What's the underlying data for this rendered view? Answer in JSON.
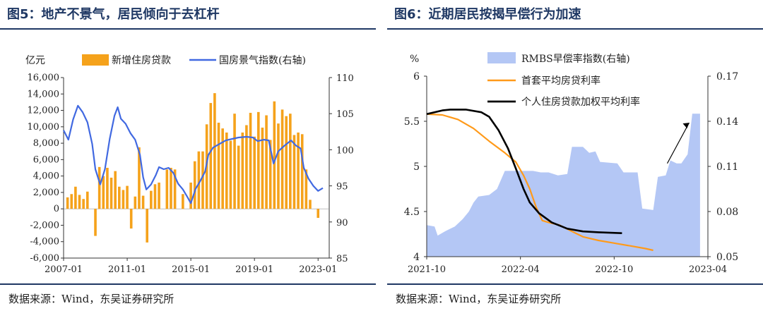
{
  "chart_data": [
    {
      "type": "bar+line",
      "title": "图5：地产不景气，居民倾向于去杠杆",
      "source": "数据来源：Wind，东吴证券研究所",
      "left_unit": "亿元",
      "legend": [
        "新增住房贷款",
        "国房景气指数(右轴)"
      ],
      "colors": {
        "bar": "#f5a21b",
        "line": "#4169e1"
      },
      "left_axis": {
        "min": -6000,
        "max": 16000,
        "step": 2000,
        "ticks": [
          "-6,000",
          "-4,000",
          "-2,000",
          "0",
          "2,000",
          "4,000",
          "6,000",
          "8,000",
          "10,000",
          "12,000",
          "14,000",
          "16,000"
        ]
      },
      "right_axis": {
        "min": 85,
        "max": 110,
        "step": 5,
        "ticks": [
          "85",
          "90",
          "95",
          "100",
          "105",
          "110"
        ]
      },
      "x_ticks": [
        "2007-01",
        "2011-01",
        "2015-01",
        "2019-01",
        "2023-01"
      ],
      "x_range": [
        2007.0,
        2023.7
      ],
      "bar_points": [
        [
          2007.25,
          1400
        ],
        [
          2007.5,
          1800
        ],
        [
          2007.75,
          2700
        ],
        [
          2008.0,
          1700
        ],
        [
          2008.25,
          1200
        ],
        [
          2008.5,
          2100
        ],
        [
          2009.0,
          -3300
        ],
        [
          2009.25,
          5100
        ],
        [
          2009.5,
          4000
        ],
        [
          2009.75,
          5000
        ],
        [
          2010.0,
          3800
        ],
        [
          2010.25,
          4600
        ],
        [
          2010.5,
          2700
        ],
        [
          2010.75,
          2300
        ],
        [
          2011.0,
          2800
        ],
        [
          2011.25,
          -2400
        ],
        [
          2011.5,
          1500
        ],
        [
          2011.75,
          7500
        ],
        [
          2012.0,
          1600
        ],
        [
          2012.25,
          -4100
        ],
        [
          2012.5,
          2200
        ],
        [
          2012.75,
          3000
        ],
        [
          2013.0,
          3200
        ],
        [
          2013.5,
          4800
        ],
        [
          2013.75,
          5000
        ],
        [
          2014.0,
          4800
        ],
        [
          2014.5,
          1800
        ],
        [
          2015.0,
          3200
        ],
        [
          2015.25,
          5800
        ],
        [
          2015.5,
          7000
        ],
        [
          2015.75,
          7000
        ],
        [
          2016.0,
          10300
        ],
        [
          2016.25,
          12900
        ],
        [
          2016.5,
          14100
        ],
        [
          2016.75,
          10500
        ],
        [
          2017.0,
          9800
        ],
        [
          2017.25,
          9300
        ],
        [
          2017.5,
          8300
        ],
        [
          2017.75,
          11600
        ],
        [
          2018.0,
          7700
        ],
        [
          2018.25,
          9300
        ],
        [
          2018.5,
          10200
        ],
        [
          2018.75,
          11700
        ],
        [
          2019.0,
          8800
        ],
        [
          2019.25,
          11800
        ],
        [
          2019.5,
          9900
        ],
        [
          2019.75,
          11400
        ],
        [
          2020.0,
          8400
        ],
        [
          2020.25,
          13100
        ],
        [
          2020.5,
          10400
        ],
        [
          2020.75,
          12100
        ],
        [
          2021.0,
          11300
        ],
        [
          2021.25,
          11600
        ],
        [
          2021.5,
          9000
        ],
        [
          2021.75,
          9300
        ],
        [
          2022.0,
          9100
        ],
        [
          2022.25,
          4800
        ],
        [
          2022.5,
          1100
        ],
        [
          2023.0,
          -1100
        ]
      ],
      "line_points": [
        [
          2007.0,
          102.7
        ],
        [
          2007.3,
          101.4
        ],
        [
          2007.6,
          104.2
        ],
        [
          2007.9,
          106.1
        ],
        [
          2008.2,
          105.2
        ],
        [
          2008.5,
          103.8
        ],
        [
          2008.8,
          100.8
        ],
        [
          2009.0,
          97.3
        ],
        [
          2009.3,
          95.2
        ],
        [
          2009.6,
          97.3
        ],
        [
          2009.9,
          101.5
        ],
        [
          2010.2,
          104.7
        ],
        [
          2010.4,
          105.9
        ],
        [
          2010.6,
          104.3
        ],
        [
          2010.9,
          103.6
        ],
        [
          2011.2,
          102.3
        ],
        [
          2011.5,
          101.4
        ],
        [
          2011.8,
          99.3
        ],
        [
          2012.0,
          96.2
        ],
        [
          2012.2,
          94.5
        ],
        [
          2012.5,
          95.2
        ],
        [
          2012.8,
          96.5
        ],
        [
          2013.0,
          97.6
        ],
        [
          2013.3,
          97.3
        ],
        [
          2013.6,
          97.5
        ],
        [
          2013.9,
          96.8
        ],
        [
          2014.2,
          95.3
        ],
        [
          2014.5,
          94.5
        ],
        [
          2014.8,
          93.4
        ],
        [
          2015.0,
          92.6
        ],
        [
          2015.3,
          94.6
        ],
        [
          2015.6,
          95.7
        ],
        [
          2015.9,
          97.0
        ],
        [
          2016.1,
          99.3
        ],
        [
          2016.4,
          100.3
        ],
        [
          2016.8,
          100.8
        ],
        [
          2017.2,
          101.3
        ],
        [
          2017.6,
          101.5
        ],
        [
          2018.0,
          101.7
        ],
        [
          2018.5,
          101.8
        ],
        [
          2018.9,
          101.7
        ],
        [
          2019.2,
          101.2
        ],
        [
          2019.6,
          101.4
        ],
        [
          2019.9,
          101.3
        ],
        [
          2020.2,
          98.1
        ],
        [
          2020.5,
          99.8
        ],
        [
          2020.9,
          100.6
        ],
        [
          2021.3,
          101.3
        ],
        [
          2021.6,
          100.6
        ],
        [
          2021.9,
          100.2
        ],
        [
          2022.1,
          97.5
        ],
        [
          2022.4,
          96.0
        ],
        [
          2022.7,
          95.0
        ],
        [
          2023.0,
          94.3
        ],
        [
          2023.3,
          94.7
        ]
      ]
    },
    {
      "type": "area+line",
      "title": "图6：近期居民按揭早偿行为加速",
      "source": "数据来源：Wind，东吴证券研究所",
      "left_unit": "%",
      "legend": [
        "RMBS早偿率指数(右轴)",
        "首套平均房贷利率",
        "个人住房贷款加权平均利率"
      ],
      "colors": {
        "area": "#b4c7f5",
        "line1": "#ff9a1a",
        "line2": "#000000"
      },
      "left_axis": {
        "min": 4,
        "max": 6,
        "ticks": [
          "4",
          "4.5",
          "5",
          "5.5",
          "6"
        ]
      },
      "right_axis": {
        "min": 0.05,
        "max": 0.17,
        "ticks": [
          "0.05",
          "0.08",
          "0.11",
          "0.14",
          "0.17"
        ]
      },
      "x_ticks": [
        "2021-10",
        "2022-04",
        "2022-10",
        "2023-04"
      ],
      "x_range": [
        0,
        18
      ],
      "area_points": [
        [
          0,
          0.071
        ],
        [
          0.5,
          0.07
        ],
        [
          0.7,
          0.064
        ],
        [
          1.2,
          0.067
        ],
        [
          1.8,
          0.07
        ],
        [
          2.3,
          0.075
        ],
        [
          2.7,
          0.08
        ],
        [
          3.0,
          0.086
        ],
        [
          3.3,
          0.09
        ],
        [
          4.0,
          0.091
        ],
        [
          4.5,
          0.095
        ],
        [
          5.0,
          0.107
        ],
        [
          6.0,
          0.107
        ],
        [
          6.8,
          0.107
        ],
        [
          7.3,
          0.106
        ],
        [
          7.8,
          0.106
        ],
        [
          8.4,
          0.104
        ],
        [
          9.0,
          0.105
        ],
        [
          9.3,
          0.123
        ],
        [
          10.0,
          0.123
        ],
        [
          10.4,
          0.119
        ],
        [
          10.8,
          0.12
        ],
        [
          11.1,
          0.113
        ],
        [
          12.2,
          0.112
        ],
        [
          12.6,
          0.106
        ],
        [
          13.5,
          0.106
        ],
        [
          13.8,
          0.082
        ],
        [
          14.5,
          0.081
        ],
        [
          14.8,
          0.103
        ],
        [
          15.3,
          0.104
        ],
        [
          15.6,
          0.114
        ],
        [
          16.0,
          0.112
        ],
        [
          16.3,
          0.112
        ],
        [
          16.7,
          0.118
        ],
        [
          17.0,
          0.145
        ],
        [
          17.5,
          0.145
        ],
        [
          17.5,
          0.05
        ]
      ],
      "line1_points": [
        [
          0,
          5.58
        ],
        [
          1.0,
          5.57
        ],
        [
          2.0,
          5.52
        ],
        [
          3.0,
          5.42
        ],
        [
          4.0,
          5.28
        ],
        [
          5.0,
          5.15
        ],
        [
          5.7,
          5.05
        ],
        [
          6.2,
          4.9
        ],
        [
          6.6,
          4.75
        ],
        [
          7.0,
          4.55
        ],
        [
          7.4,
          4.4
        ],
        [
          7.8,
          4.38
        ],
        [
          8.5,
          4.35
        ],
        [
          9.3,
          4.28
        ],
        [
          10.0,
          4.22
        ],
        [
          11.0,
          4.18
        ],
        [
          12.0,
          4.15
        ],
        [
          13.0,
          4.12
        ],
        [
          14.0,
          4.09
        ],
        [
          14.5,
          4.07
        ]
      ],
      "line2_points": [
        [
          0,
          5.58
        ],
        [
          1.0,
          5.62
        ],
        [
          1.5,
          5.63
        ],
        [
          2.5,
          5.63
        ],
        [
          3.5,
          5.6
        ],
        [
          4.0,
          5.55
        ],
        [
          4.6,
          5.4
        ],
        [
          5.2,
          5.2
        ],
        [
          5.7,
          4.98
        ],
        [
          6.2,
          4.75
        ],
        [
          6.6,
          4.6
        ],
        [
          7.2,
          4.48
        ],
        [
          8.0,
          4.38
        ],
        [
          9.0,
          4.31
        ],
        [
          10.0,
          4.28
        ],
        [
          11.0,
          4.27
        ],
        [
          12.5,
          4.26
        ]
      ]
    }
  ]
}
